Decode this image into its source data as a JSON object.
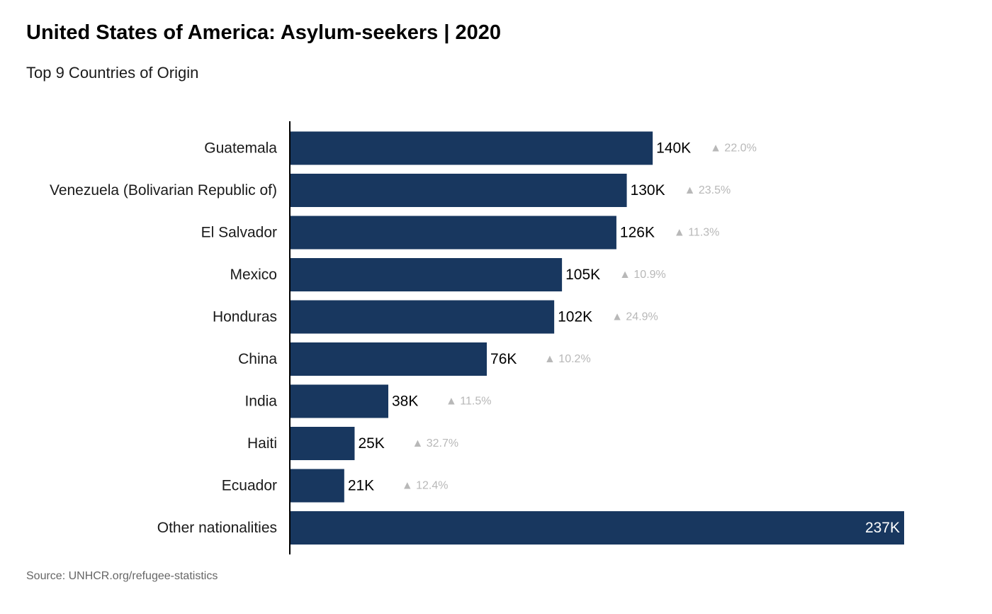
{
  "header": {
    "title": "United States of America: Asylum-seekers | 2020",
    "subtitle": "Top 9 Countries of Origin"
  },
  "footer": {
    "source": "Source: UNHCR.org/refugee-statistics"
  },
  "colors": {
    "bar": "#18375f",
    "change": "#b8b8b8",
    "axis": "#000000"
  },
  "chart_data": {
    "type": "bar",
    "orientation": "horizontal",
    "categories": [
      "Guatemala",
      "Venezuela (Bolivarian Republic of)",
      "El Salvador",
      "Mexico",
      "Honduras",
      "China",
      "India",
      "Haiti",
      "Ecuador",
      "Other nationalities"
    ],
    "values": [
      140,
      130,
      126,
      105,
      102,
      76,
      38,
      25,
      21,
      237
    ],
    "value_labels": [
      "140K",
      "130K",
      "126K",
      "105K",
      "102K",
      "76K",
      "38K",
      "25K",
      "21K",
      "237K"
    ],
    "change_labels": [
      "▲ 22.0%",
      "▲ 23.5%",
      "▲ 11.3%",
      "▲ 10.9%",
      "▲ 24.9%",
      "▲ 10.2%",
      "▲ 11.5%",
      "▲ 32.7%",
      "▲ 12.4%",
      ""
    ],
    "unit": "thousands",
    "xlim": [
      0,
      237
    ],
    "grid": false,
    "legend": "none"
  }
}
